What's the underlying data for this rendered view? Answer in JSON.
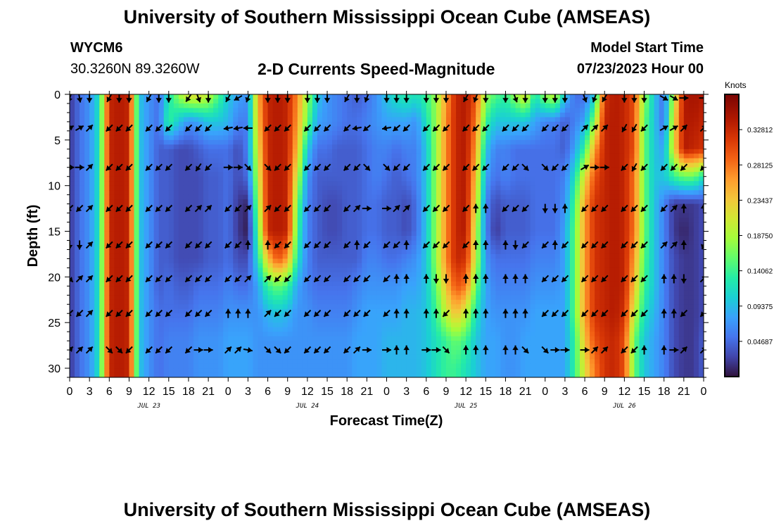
{
  "header": {
    "title": "University of Southern Mississippi Ocean Cube (AMSEAS)",
    "station_id": "WYCM6",
    "coordinates": "30.3260N  89.3260W",
    "subtitle": "2-D Currents Speed-Magnitude",
    "model_start_label": "Model Start Time",
    "model_start_value": "07/23/2023 Hour 00"
  },
  "footer": {
    "title": "University of Southern Mississippi Ocean Cube (AMSEAS)"
  },
  "chart_data": {
    "type": "heatmap",
    "title": "2-D Currents Speed-Magnitude",
    "xlabel": "Forecast Time(Z)",
    "ylabel": "Depth (ft)",
    "x_range_hours": [
      0,
      96
    ],
    "y_range_ft": [
      0,
      31
    ],
    "y_inverted": true,
    "x_tick_labels": [
      "0",
      "3",
      "6",
      "9",
      "12",
      "15",
      "18",
      "21",
      "0",
      "3",
      "6",
      "9",
      "12",
      "15",
      "18",
      "21",
      "0",
      "3",
      "6",
      "9",
      "12",
      "15",
      "18",
      "21",
      "0",
      "3",
      "6",
      "9",
      "12",
      "15",
      "18",
      "21",
      "0"
    ],
    "x_tick_hours": [
      0,
      3,
      6,
      9,
      12,
      15,
      18,
      21,
      24,
      27,
      30,
      33,
      36,
      39,
      42,
      45,
      48,
      51,
      54,
      57,
      60,
      63,
      66,
      69,
      72,
      75,
      78,
      81,
      84,
      87,
      90,
      93,
      96
    ],
    "date_labels": [
      {
        "label": "JUL 23",
        "hour": 12
      },
      {
        "label": "JUL 24",
        "hour": 36
      },
      {
        "label": "JUL 25",
        "hour": 60
      },
      {
        "label": "JUL 26",
        "hour": 84
      }
    ],
    "y_ticks": [
      0,
      5,
      10,
      15,
      20,
      25,
      30
    ],
    "y_tick_labels": [
      "0",
      "5",
      "10",
      "15",
      "20",
      "25",
      "30"
    ],
    "colorbar": {
      "units": "Knots",
      "range": [
        0,
        0.375
      ],
      "ticks": [
        0.04687,
        0.09375,
        0.14062,
        0.1875,
        0.23437,
        0.28125,
        0.32812
      ],
      "tick_labels": [
        "0.04687",
        "0.09375",
        "0.14062",
        "0.18750",
        "0.23437",
        "0.28125",
        "0.32812"
      ]
    },
    "speed_columns_hours": [
      0,
      1.5,
      3,
      4.5,
      6,
      7.5,
      9,
      10.5,
      12,
      13.5,
      15,
      16.5,
      18,
      19.5,
      21,
      22.5,
      24,
      25.5,
      27,
      28.5,
      30,
      31.5,
      33,
      34.5,
      36,
      37.5,
      39,
      40.5,
      42,
      43.5,
      45,
      46.5,
      48,
      49.5,
      51,
      52.5,
      54,
      55.5,
      57,
      58.5,
      60,
      61.5,
      63,
      64.5,
      66,
      67.5,
      69,
      70.5,
      72,
      73.5,
      75,
      76.5,
      78,
      79.5,
      81,
      82.5,
      84,
      85.5,
      87,
      88.5,
      90,
      91.5,
      93,
      94.5,
      96
    ],
    "speed_rows_ft": [
      0,
      3,
      6,
      9,
      12,
      15,
      18,
      21,
      24,
      27,
      30
    ],
    "speed_knots": [
      [
        0.02,
        0.05,
        0.07,
        0.12,
        0.33,
        0.34,
        0.33,
        0.1,
        0.07,
        0.05,
        0.12,
        0.18,
        0.22,
        0.22,
        0.2,
        0.15,
        0.1,
        0.08,
        0.07,
        0.25,
        0.33,
        0.34,
        0.33,
        0.27,
        0.18,
        0.1,
        0.07,
        0.06,
        0.05,
        0.04,
        0.05,
        0.07,
        0.1,
        0.12,
        0.13,
        0.12,
        0.14,
        0.18,
        0.26,
        0.33,
        0.34,
        0.3,
        0.18,
        0.15,
        0.14,
        0.18,
        0.22,
        0.12,
        0.18,
        0.2,
        0.1,
        0.05,
        0.05,
        0.1,
        0.32,
        0.34,
        0.33,
        0.3,
        0.18,
        0.1,
        0.05,
        0.2,
        0.34,
        0.35,
        0.34
      ],
      [
        0.02,
        0.05,
        0.07,
        0.12,
        0.33,
        0.34,
        0.33,
        0.1,
        0.07,
        0.05,
        0.14,
        0.1,
        0.07,
        0.08,
        0.1,
        0.1,
        0.09,
        0.06,
        0.06,
        0.24,
        0.33,
        0.34,
        0.33,
        0.26,
        0.16,
        0.08,
        0.07,
        0.06,
        0.05,
        0.05,
        0.06,
        0.07,
        0.08,
        0.08,
        0.08,
        0.07,
        0.12,
        0.18,
        0.27,
        0.33,
        0.34,
        0.28,
        0.14,
        0.1,
        0.1,
        0.1,
        0.1,
        0.08,
        0.06,
        0.06,
        0.04,
        0.06,
        0.08,
        0.18,
        0.33,
        0.34,
        0.33,
        0.3,
        0.16,
        0.1,
        0.05,
        0.22,
        0.34,
        0.34,
        0.33
      ],
      [
        0.02,
        0.05,
        0.07,
        0.12,
        0.33,
        0.34,
        0.33,
        0.1,
        0.07,
        0.04,
        0.04,
        0.03,
        0.03,
        0.04,
        0.05,
        0.05,
        0.05,
        0.03,
        0.06,
        0.22,
        0.33,
        0.34,
        0.33,
        0.24,
        0.1,
        0.05,
        0.05,
        0.04,
        0.04,
        0.04,
        0.05,
        0.06,
        0.06,
        0.05,
        0.06,
        0.06,
        0.1,
        0.18,
        0.27,
        0.33,
        0.34,
        0.26,
        0.1,
        0.06,
        0.06,
        0.05,
        0.05,
        0.05,
        0.05,
        0.05,
        0.04,
        0.08,
        0.14,
        0.26,
        0.33,
        0.34,
        0.33,
        0.3,
        0.16,
        0.1,
        0.08,
        0.22,
        0.34,
        0.33,
        0.32
      ],
      [
        0.02,
        0.05,
        0.07,
        0.12,
        0.33,
        0.34,
        0.33,
        0.1,
        0.07,
        0.04,
        0.04,
        0.03,
        0.03,
        0.03,
        0.04,
        0.04,
        0.05,
        0.03,
        0.05,
        0.2,
        0.33,
        0.34,
        0.33,
        0.2,
        0.07,
        0.04,
        0.04,
        0.04,
        0.04,
        0.04,
        0.05,
        0.06,
        0.05,
        0.04,
        0.05,
        0.06,
        0.1,
        0.18,
        0.27,
        0.33,
        0.34,
        0.24,
        0.08,
        0.05,
        0.06,
        0.05,
        0.05,
        0.05,
        0.05,
        0.05,
        0.06,
        0.12,
        0.22,
        0.3,
        0.33,
        0.34,
        0.33,
        0.28,
        0.16,
        0.1,
        0.1,
        0.14,
        0.16,
        0.16,
        0.12
      ],
      [
        0.02,
        0.05,
        0.07,
        0.12,
        0.33,
        0.34,
        0.33,
        0.1,
        0.07,
        0.04,
        0.04,
        0.03,
        0.03,
        0.03,
        0.04,
        0.04,
        0.05,
        0.02,
        0.01,
        0.18,
        0.33,
        0.34,
        0.33,
        0.16,
        0.06,
        0.04,
        0.03,
        0.03,
        0.04,
        0.04,
        0.05,
        0.05,
        0.04,
        0.04,
        0.03,
        0.05,
        0.1,
        0.18,
        0.27,
        0.33,
        0.34,
        0.22,
        0.06,
        0.03,
        0.04,
        0.04,
        0.04,
        0.05,
        0.05,
        0.05,
        0.07,
        0.15,
        0.26,
        0.32,
        0.33,
        0.34,
        0.33,
        0.28,
        0.16,
        0.1,
        0.06,
        0.02,
        0.02,
        0.02,
        0.03
      ],
      [
        0.02,
        0.05,
        0.07,
        0.12,
        0.33,
        0.34,
        0.33,
        0.1,
        0.07,
        0.04,
        0.04,
        0.03,
        0.03,
        0.03,
        0.04,
        0.04,
        0.05,
        0.02,
        0.005,
        0.15,
        0.33,
        0.34,
        0.33,
        0.14,
        0.06,
        0.04,
        0.03,
        0.03,
        0.04,
        0.04,
        0.05,
        0.05,
        0.04,
        0.04,
        0.03,
        0.05,
        0.1,
        0.18,
        0.27,
        0.33,
        0.34,
        0.2,
        0.06,
        0.02,
        0.04,
        0.04,
        0.04,
        0.05,
        0.05,
        0.05,
        0.08,
        0.16,
        0.26,
        0.32,
        0.33,
        0.34,
        0.33,
        0.28,
        0.16,
        0.1,
        0.06,
        0.02,
        0.01,
        0.02,
        0.03
      ],
      [
        0.02,
        0.05,
        0.07,
        0.12,
        0.33,
        0.34,
        0.33,
        0.1,
        0.07,
        0.04,
        0.04,
        0.03,
        0.03,
        0.03,
        0.04,
        0.04,
        0.05,
        0.03,
        0.03,
        0.12,
        0.24,
        0.3,
        0.26,
        0.12,
        0.06,
        0.04,
        0.04,
        0.04,
        0.04,
        0.04,
        0.06,
        0.06,
        0.05,
        0.05,
        0.06,
        0.07,
        0.1,
        0.18,
        0.27,
        0.33,
        0.32,
        0.2,
        0.07,
        0.05,
        0.05,
        0.05,
        0.05,
        0.06,
        0.06,
        0.06,
        0.08,
        0.16,
        0.26,
        0.32,
        0.33,
        0.34,
        0.33,
        0.26,
        0.15,
        0.1,
        0.06,
        0.03,
        0.02,
        0.02,
        0.03
      ],
      [
        0.02,
        0.05,
        0.07,
        0.12,
        0.33,
        0.34,
        0.33,
        0.1,
        0.07,
        0.04,
        0.05,
        0.04,
        0.04,
        0.05,
        0.05,
        0.05,
        0.06,
        0.05,
        0.05,
        0.08,
        0.14,
        0.16,
        0.14,
        0.08,
        0.06,
        0.05,
        0.05,
        0.05,
        0.05,
        0.06,
        0.07,
        0.07,
        0.07,
        0.07,
        0.08,
        0.08,
        0.1,
        0.16,
        0.24,
        0.3,
        0.28,
        0.16,
        0.08,
        0.06,
        0.06,
        0.06,
        0.06,
        0.07,
        0.07,
        0.07,
        0.08,
        0.16,
        0.26,
        0.32,
        0.33,
        0.34,
        0.33,
        0.24,
        0.14,
        0.1,
        0.06,
        0.03,
        0.02,
        0.02,
        0.03
      ],
      [
        0.02,
        0.05,
        0.07,
        0.12,
        0.33,
        0.34,
        0.33,
        0.1,
        0.07,
        0.05,
        0.05,
        0.05,
        0.05,
        0.06,
        0.06,
        0.06,
        0.07,
        0.07,
        0.07,
        0.07,
        0.09,
        0.1,
        0.09,
        0.07,
        0.07,
        0.06,
        0.06,
        0.06,
        0.06,
        0.07,
        0.08,
        0.08,
        0.08,
        0.08,
        0.09,
        0.09,
        0.1,
        0.14,
        0.2,
        0.24,
        0.2,
        0.12,
        0.08,
        0.07,
        0.07,
        0.07,
        0.07,
        0.08,
        0.08,
        0.08,
        0.08,
        0.16,
        0.26,
        0.32,
        0.33,
        0.34,
        0.32,
        0.2,
        0.12,
        0.09,
        0.06,
        0.03,
        0.02,
        0.02,
        0.03
      ],
      [
        0.02,
        0.05,
        0.07,
        0.12,
        0.33,
        0.34,
        0.33,
        0.1,
        0.07,
        0.05,
        0.06,
        0.06,
        0.06,
        0.07,
        0.07,
        0.07,
        0.08,
        0.08,
        0.08,
        0.07,
        0.07,
        0.07,
        0.07,
        0.07,
        0.07,
        0.07,
        0.07,
        0.07,
        0.07,
        0.08,
        0.08,
        0.08,
        0.09,
        0.09,
        0.09,
        0.09,
        0.1,
        0.12,
        0.14,
        0.16,
        0.14,
        0.1,
        0.08,
        0.08,
        0.07,
        0.07,
        0.08,
        0.08,
        0.08,
        0.08,
        0.08,
        0.14,
        0.24,
        0.3,
        0.32,
        0.33,
        0.3,
        0.16,
        0.1,
        0.08,
        0.06,
        0.03,
        0.02,
        0.02,
        0.04
      ],
      [
        0.02,
        0.05,
        0.07,
        0.12,
        0.33,
        0.34,
        0.33,
        0.1,
        0.07,
        0.05,
        0.06,
        0.06,
        0.06,
        0.07,
        0.07,
        0.07,
        0.08,
        0.08,
        0.08,
        0.07,
        0.07,
        0.07,
        0.07,
        0.07,
        0.07,
        0.07,
        0.07,
        0.07,
        0.07,
        0.08,
        0.08,
        0.08,
        0.09,
        0.09,
        0.09,
        0.09,
        0.1,
        0.12,
        0.14,
        0.14,
        0.12,
        0.1,
        0.08,
        0.08,
        0.07,
        0.07,
        0.08,
        0.08,
        0.08,
        0.08,
        0.08,
        0.14,
        0.22,
        0.28,
        0.32,
        0.33,
        0.3,
        0.16,
        0.1,
        0.08,
        0.06,
        0.03,
        0.02,
        0.02,
        0.04
      ]
    ],
    "vector_columns_hours": [
      0,
      1.5,
      3,
      6,
      7.5,
      9,
      12,
      13.5,
      15,
      18,
      19.5,
      21,
      24,
      25.5,
      27,
      30,
      31.5,
      33,
      36,
      37.5,
      39,
      42,
      43.5,
      45,
      48,
      49.5,
      51,
      54,
      55.5,
      57,
      60,
      61.5,
      63,
      66,
      67.5,
      69,
      72,
      73.5,
      75,
      78,
      79.5,
      81,
      84,
      85.5,
      87,
      90,
      91.5,
      93,
      96
    ],
    "vector_rows_ft": [
      0.4,
      3.7,
      8,
      12.5,
      16.5,
      20.2,
      24,
      28
    ],
    "vector_directions_deg": [
      [
        200,
        170,
        180,
        210,
        180,
        180,
        210,
        180,
        180,
        215,
        160,
        180,
        210,
        240,
        200,
        180,
        180,
        180,
        180,
        180,
        180,
        210,
        180,
        200,
        180,
        180,
        180,
        180,
        180,
        180,
        210,
        200,
        180,
        180,
        160,
        180,
        180,
        180,
        180,
        160,
        200,
        210,
        180,
        180,
        180,
        120,
        120,
        90,
        90
      ],
      [
        60,
        60,
        45,
        225,
        225,
        225,
        225,
        225,
        225,
        225,
        225,
        225,
        260,
        260,
        270,
        225,
        225,
        225,
        225,
        225,
        225,
        225,
        260,
        230,
        260,
        230,
        225,
        225,
        225,
        225,
        225,
        225,
        225,
        225,
        225,
        225,
        225,
        225,
        225,
        45,
        45,
        45,
        210,
        210,
        225,
        60,
        60,
        45,
        45
      ],
      [
        90,
        90,
        45,
        225,
        225,
        225,
        225,
        225,
        225,
        225,
        215,
        225,
        90,
        90,
        135,
        135,
        225,
        225,
        225,
        225,
        225,
        225,
        225,
        135,
        135,
        225,
        225,
        225,
        225,
        225,
        225,
        225,
        225,
        225,
        225,
        135,
        135,
        225,
        225,
        60,
        90,
        90,
        225,
        210,
        225,
        225,
        225,
        225,
        225
      ],
      [
        225,
        225,
        45,
        225,
        225,
        225,
        225,
        225,
        225,
        225,
        45,
        45,
        225,
        225,
        45,
        45,
        225,
        225,
        225,
        225,
        225,
        225,
        45,
        90,
        90,
        45,
        45,
        225,
        225,
        225,
        225,
        0,
        0,
        225,
        225,
        225,
        180,
        180,
        0,
        225,
        225,
        225,
        225,
        225,
        225,
        225,
        45,
        0,
        0
      ],
      [
        180,
        180,
        45,
        225,
        225,
        225,
        225,
        225,
        225,
        225,
        225,
        225,
        225,
        225,
        0,
        0,
        225,
        225,
        225,
        225,
        225,
        225,
        0,
        225,
        225,
        225,
        0,
        225,
        225,
        225,
        225,
        0,
        0,
        0,
        180,
        225,
        225,
        0,
        225,
        225,
        225,
        225,
        225,
        225,
        225,
        45,
        45,
        0,
        200
      ],
      [
        135,
        45,
        45,
        225,
        225,
        225,
        225,
        225,
        225,
        225,
        225,
        225,
        225,
        225,
        45,
        45,
        225,
        225,
        225,
        225,
        225,
        225,
        225,
        225,
        225,
        0,
        0,
        0,
        180,
        180,
        0,
        0,
        0,
        0,
        0,
        0,
        225,
        225,
        225,
        225,
        225,
        225,
        225,
        225,
        225,
        0,
        0,
        180,
        45
      ],
      [
        225,
        225,
        45,
        225,
        225,
        225,
        225,
        225,
        225,
        225,
        225,
        225,
        0,
        0,
        0,
        45,
        225,
        225,
        225,
        225,
        225,
        225,
        225,
        225,
        225,
        0,
        0,
        0,
        0,
        225,
        0,
        0,
        0,
        0,
        0,
        0,
        225,
        225,
        225,
        225,
        225,
        225,
        225,
        225,
        225,
        0,
        0,
        225,
        225
      ],
      [
        45,
        45,
        45,
        135,
        135,
        225,
        225,
        225,
        225,
        225,
        90,
        90,
        45,
        45,
        100,
        135,
        135,
        225,
        225,
        225,
        225,
        225,
        45,
        90,
        90,
        0,
        0,
        90,
        90,
        135,
        0,
        0,
        0,
        0,
        0,
        135,
        135,
        90,
        90,
        90,
        45,
        45,
        225,
        225,
        0,
        0,
        90,
        45,
        45
      ]
    ]
  }
}
